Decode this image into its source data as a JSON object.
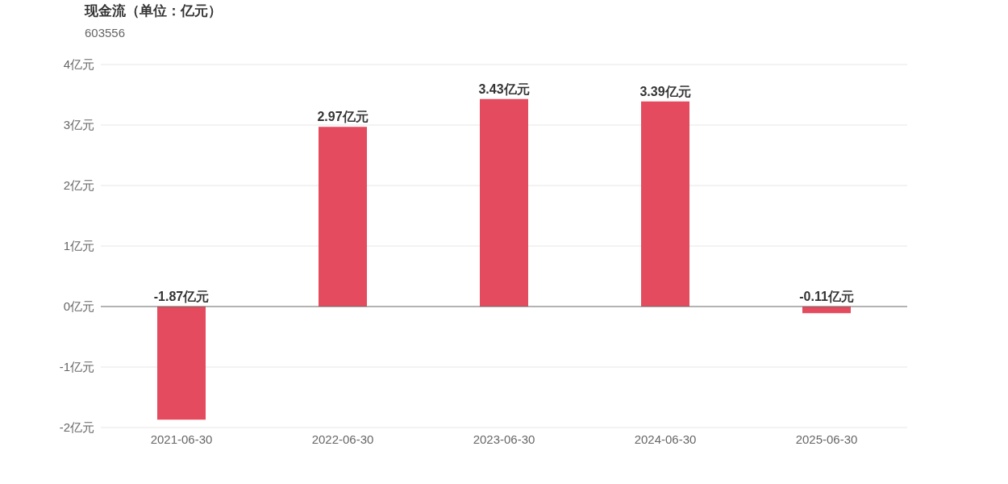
{
  "chart_data": {
    "type": "bar",
    "title": "现金流（单位：亿元）",
    "subtitle": "603556",
    "categories": [
      "2021-06-30",
      "2022-06-30",
      "2023-06-30",
      "2024-06-30",
      "2025-06-30"
    ],
    "values": [
      -1.87,
      2.97,
      3.43,
      3.39,
      -0.11
    ],
    "value_labels": [
      "-1.87亿元",
      "2.97亿元",
      "3.43亿元",
      "3.39亿元",
      "-0.11亿元"
    ],
    "color": "#e54b5e",
    "ylim": [
      -2,
      4
    ],
    "yticks": [
      {
        "value": -2,
        "label": "-2亿元"
      },
      {
        "value": -1,
        "label": "-1亿元"
      },
      {
        "value": 0,
        "label": "0亿元"
      },
      {
        "value": 1,
        "label": "1亿元"
      },
      {
        "value": 2,
        "label": "2亿元"
      },
      {
        "value": 3,
        "label": "3亿元"
      },
      {
        "value": 4,
        "label": "4亿元"
      }
    ],
    "grid": "y"
  }
}
